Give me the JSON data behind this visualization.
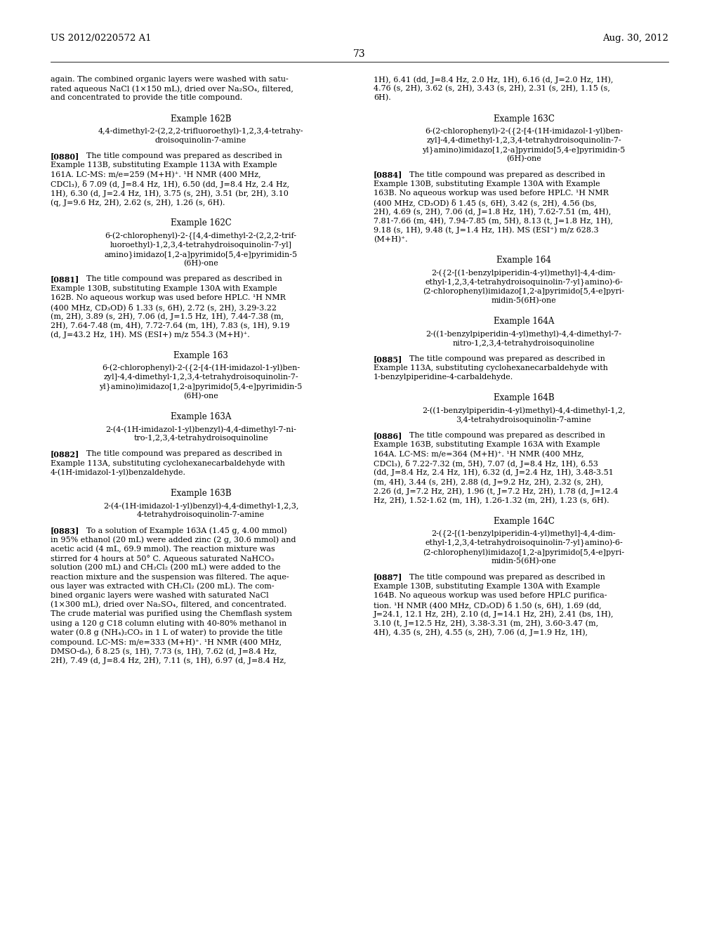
{
  "background_color": "#ffffff",
  "header_left": "US 2012/0220572 A1",
  "header_right": "Aug. 30, 2012",
  "page_number": "73",
  "left_column": [
    {
      "type": "body",
      "text": "again. The combined organic layers were washed with satu-\nrated aqueous NaCl (1×150 mL), dried over Na₂SO₄, filtered,\nand concentrated to provide the title compound."
    },
    {
      "type": "example_title",
      "text": "Example 162B"
    },
    {
      "type": "compound_name",
      "lines": [
        "4,4-dimethyl-2-(2,2,2-trifluoroethyl)-1,2,3,4-tetrahy-",
        "droisoquinolin-7-amine"
      ]
    },
    {
      "type": "paragraph",
      "tag": "[0880]",
      "lines": [
        "The title compound was prepared as described in",
        "Example 113B, substituting Example 113A with Example",
        "161A. LC-MS: m/e=259 (M+H)⁺. ¹H NMR (400 MHz,",
        "CDCl₃), δ 7.09 (d, J=8.4 Hz, 1H), 6.50 (dd, J=8.4 Hz, 2.4 Hz,",
        "1H), 6.30 (d, J=2.4 Hz, 1H), 3.75 (s, 2H), 3.51 (br, 2H), 3.10",
        "(q, J=9.6 Hz, 2H), 2.62 (s, 2H), 1.26 (s, 6H)."
      ]
    },
    {
      "type": "example_title",
      "text": "Example 162C"
    },
    {
      "type": "compound_name",
      "lines": [
        "6-(2-chlorophenyl)-2-{[4,4-dimethyl-2-(2,2,2-trif-",
        "luoroethyl)-1,2,3,4-tetrahydroisoquinolin-7-yl]",
        "amino}imidazo[1,2-a]pyrimido[5,4-e]pyrimidin-5",
        "(6H)-one"
      ]
    },
    {
      "type": "paragraph",
      "tag": "[0881]",
      "lines": [
        "The title compound was prepared as described in",
        "Example 130B, substituting Example 130A with Example",
        "162B. No aqueous workup was used before HPLC. ¹H NMR",
        "(400 MHz, CD₃OD) δ 1.33 (s, 6H), 2.72 (s, 2H), 3.29-3.22",
        "(m, 2H), 3.89 (s, 2H), 7.06 (d, J=1.5 Hz, 1H), 7.44-7.38 (m,",
        "2H), 7.64-7.48 (m, 4H), 7.72-7.64 (m, 1H), 7.83 (s, 1H), 9.19",
        "(d, J=43.2 Hz, 1H). MS (ESI+) m/z 554.3 (M+H)⁺."
      ]
    },
    {
      "type": "example_title",
      "text": "Example 163"
    },
    {
      "type": "compound_name",
      "lines": [
        "6-(2-chlorophenyl)-2-({2-[4-(1H-imidazol-1-yl)ben-",
        "zyl]-4,4-dimethyl-1,2,3,4-tetrahydroisoquinolin-7-",
        "yl}amino)imidazo[1,2-a]pyrimido[5,4-e]pyrimidin-5",
        "(6H)-one"
      ]
    },
    {
      "type": "example_title",
      "text": "Example 163A"
    },
    {
      "type": "compound_name",
      "lines": [
        "2-(4-(1H-imidazol-1-yl)benzyl)-4,4-dimethyl-7-ni-",
        "tro-1,2,3,4-tetrahydroisoquinoline"
      ]
    },
    {
      "type": "paragraph",
      "tag": "[0882]",
      "lines": [
        "The title compound was prepared as described in",
        "Example 113A, substituting cyclohexanecarbaldehyde with",
        "4-(1H-imidazol-1-yl)benzaldehyde."
      ]
    },
    {
      "type": "example_title",
      "text": "Example 163B"
    },
    {
      "type": "compound_name",
      "lines": [
        "2-(4-(1H-imidazol-1-yl)benzyl)-4,4-dimethyl-1,2,3,",
        "4-tetrahydroisoquinolin-7-amine"
      ]
    },
    {
      "type": "paragraph",
      "tag": "[0883]",
      "lines": [
        "To a solution of Example 163A (1.45 g, 4.00 mmol)",
        "in 95% ethanol (20 mL) were added zinc (2 g, 30.6 mmol) and",
        "acetic acid (4 mL, 69.9 mmol). The reaction mixture was",
        "stirred for 4 hours at 50° C. Aqueous saturated NaHCO₃",
        "solution (200 mL) and CH₂Cl₂ (200 mL) were added to the",
        "reaction mixture and the suspension was filtered. The aque-",
        "ous layer was extracted with CH₂Cl₂ (200 mL). The com-",
        "bined organic layers were washed with saturated NaCl",
        "(1×300 mL), dried over Na₂SO₄, filtered, and concentrated.",
        "The crude material was purified using the Chemflash system",
        "using a 120 g C18 column eluting with 40-80% methanol in",
        "water (0.8 g (NH₄)₂CO₃ in 1 L of water) to provide the title",
        "compound. LC-MS: m/e=333 (M+H)⁺. ¹H NMR (400 MHz,",
        "DMSO-d₆), δ 8.25 (s, 1H), 7.73 (s, 1H), 7.62 (d, J=8.4 Hz,",
        "2H), 7.49 (d, J=8.4 Hz, 2H), 7.11 (s, 1H), 6.97 (d, J=8.4 Hz,"
      ]
    }
  ],
  "right_column": [
    {
      "type": "body",
      "text": "1H), 6.41 (dd, J=8.4 Hz, 2.0 Hz, 1H), 6.16 (d, J=2.0 Hz, 1H),\n4.76 (s, 2H), 3.62 (s, 2H), 3.43 (s, 2H), 2.31 (s, 2H), 1.15 (s,\n6H)."
    },
    {
      "type": "example_title",
      "text": "Example 163C"
    },
    {
      "type": "compound_name",
      "lines": [
        "6-(2-chlorophenyl)-2-({2-[4-(1H-imidazol-1-yl)ben-",
        "zyl]-4,4-dimethyl-1,2,3,4-tetrahydroisoquinolin-7-",
        "yl}amino)imidazo[1,2-a]pyrimido[5,4-e]pyrimidin-5",
        "(6H)-one"
      ]
    },
    {
      "type": "paragraph",
      "tag": "[0884]",
      "lines": [
        "The title compound was prepared as described in",
        "Example 130B, substituting Example 130A with Example",
        "163B. No aqueous workup was used before HPLC. ¹H NMR",
        "(400 MHz, CD₃OD) δ 1.45 (s, 6H), 3.42 (s, 2H), 4.56 (bs,",
        "2H), 4.69 (s, 2H), 7.06 (d, J=1.8 Hz, 1H), 7.62-7.51 (m, 4H),",
        "7.81-7.66 (m, 4H), 7.94-7.85 (m, 5H), 8.13 (t, J=1.8 Hz, 1H),",
        "9.18 (s, 1H), 9.48 (t, J=1.4 Hz, 1H). MS (ESI⁺) m/z 628.3",
        "(M+H)⁺."
      ]
    },
    {
      "type": "example_title",
      "text": "Example 164"
    },
    {
      "type": "compound_name",
      "lines": [
        "2-({2-[(1-benzylpiperidin-4-yl)methyl]-4,4-dim-",
        "ethyl-1,2,3,4-tetrahydroisoquinolin-7-yl}amino)-6-",
        "(2-chlorophenyl)imidazo[1,2-a]pyrimido[5,4-e]pyri-",
        "midin-5(6H)-one"
      ]
    },
    {
      "type": "example_title",
      "text": "Example 164A"
    },
    {
      "type": "compound_name",
      "lines": [
        "2-((1-benzylpiperidin-4-yl)methyl)-4,4-dimethyl-7-",
        "nitro-1,2,3,4-tetrahydroisoquinoline"
      ]
    },
    {
      "type": "paragraph",
      "tag": "[0885]",
      "lines": [
        "The title compound was prepared as described in",
        "Example 113A, substituting cyclohexanecarbaldehyde with",
        "1-benzylpiperidine-4-carbaldehyde."
      ]
    },
    {
      "type": "example_title",
      "text": "Example 164B"
    },
    {
      "type": "compound_name",
      "lines": [
        "2-((1-benzylpiperidin-4-yl)methyl)-4,4-dimethyl-1,2,",
        "3,4-tetrahydroisoquinolin-7-amine"
      ]
    },
    {
      "type": "paragraph",
      "tag": "[0886]",
      "lines": [
        "The title compound was prepared as described in",
        "Example 163B, substituting Example 163A with Example",
        "164A. LC-MS: m/e=364 (M+H)⁺. ¹H NMR (400 MHz,",
        "CDCl₃), δ 7.22-7.32 (m, 5H), 7.07 (d, J=8.4 Hz, 1H), 6.53",
        "(dd, J=8.4 Hz, 2.4 Hz, 1H), 6.32 (d, J=2.4 Hz, 1H), 3.48-3.51",
        "(m, 4H), 3.44 (s, 2H), 2.88 (d, J=9.2 Hz, 2H), 2.32 (s, 2H),",
        "2.26 (d, J=7.2 Hz, 2H), 1.96 (t, J=7.2 Hz, 2H), 1.78 (d, J=12.4",
        "Hz, 2H), 1.52-1.62 (m, 1H), 1.26-1.32 (m, 2H), 1.23 (s, 6H)."
      ]
    },
    {
      "type": "example_title",
      "text": "Example 164C"
    },
    {
      "type": "compound_name",
      "lines": [
        "2-({2-[(1-benzylpiperidin-4-yl)methyl]-4,4-dim-",
        "ethyl-1,2,3,4-tetrahydroisoquinolin-7-yl}amino)-6-",
        "(2-chlorophenyl)imidazo[1,2-a]pyrimido[5,4-e]pyri-",
        "midin-5(6H)-one"
      ]
    },
    {
      "type": "paragraph",
      "tag": "[0887]",
      "lines": [
        "The title compound was prepared as described in",
        "Example 130B, substituting Example 130A with Example",
        "164B. No aqueous workup was used before HPLC purifica-",
        "tion. ¹H NMR (400 MHz, CD₃OD) δ 1.50 (s, 6H), 1.69 (dd,",
        "J=24.1, 12.1 Hz, 2H), 2.10 (d, J=14.1 Hz, 2H), 2.41 (bs, 1H),",
        "3.10 (t, J=12.5 Hz, 2H), 3.38-3.31 (m, 2H), 3.60-3.47 (m,",
        "4H), 4.35 (s, 2H), 4.55 (s, 2H), 7.06 (d, J=1.9 Hz, 1H),"
      ]
    }
  ]
}
